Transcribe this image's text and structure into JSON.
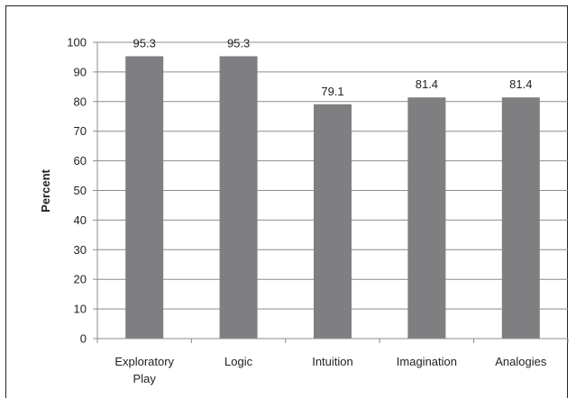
{
  "chart_data": {
    "type": "bar",
    "categories": [
      [
        "Exploratory",
        "Play"
      ],
      [
        "Logic"
      ],
      [
        "Intuition"
      ],
      [
        "Imagination"
      ],
      [
        "Analogies"
      ]
    ],
    "values": [
      95.3,
      95.3,
      79.1,
      81.4,
      81.4
    ],
    "data_labels": [
      "95.3",
      "95.3",
      "79.1",
      "81.4",
      "81.4"
    ],
    "ylabel": "Percent",
    "ylim": [
      0,
      100
    ],
    "yticks": [
      0,
      10,
      20,
      30,
      40,
      50,
      60,
      70,
      80,
      90,
      100
    ],
    "grid": true,
    "legend": "none",
    "colors": {
      "bar": "#7f7f81",
      "grid": "#8c8c8c",
      "axis": "#8c8c8c",
      "text": "#222222"
    }
  }
}
